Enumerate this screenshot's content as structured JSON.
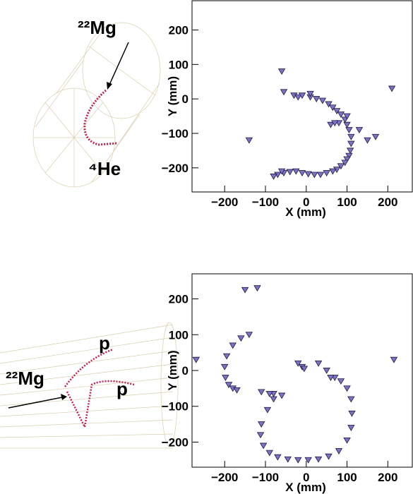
{
  "chart_data": [
    {
      "type": "scatter",
      "xlabel": "X (mm)",
      "ylabel": "Y (mm)",
      "annotations": [
        "²²Mg",
        "⁴He"
      ],
      "xlim": [
        -280,
        260
      ],
      "ylim": [
        -270,
        285
      ],
      "xticks": [
        {
          "value": -200,
          "label": "−200"
        },
        {
          "value": -100,
          "label": "−100"
        },
        0,
        100,
        200
      ],
      "yticks": [
        {
          "value": -200,
          "label": "−200"
        },
        {
          "value": -100,
          "label": "−100"
        },
        0,
        100,
        200
      ],
      "series": [
        {
          "color": "#7b72c4",
          "x": [
            -60,
            -55,
            -30,
            -20,
            -10,
            10,
            25,
            40,
            55,
            65,
            75,
            85,
            95,
            100,
            105,
            110,
            110,
            108,
            105,
            100,
            95,
            85,
            75,
            65,
            50,
            35,
            20,
            5,
            -10,
            -25,
            -40,
            -55,
            -70,
            -80,
            -60,
            210,
            -140,
            150,
            170,
            80,
            60,
            70,
            130,
            100,
            10
          ],
          "values": [
            80,
            20,
            10,
            5,
            10,
            5,
            0,
            -5,
            -15,
            -25,
            -35,
            -45,
            -60,
            -75,
            -90,
            -110,
            -130,
            -150,
            -165,
            -175,
            -185,
            -195,
            -205,
            -210,
            -215,
            -220,
            -220,
            -218,
            -215,
            -210,
            -212,
            -215,
            -220,
            -225,
            -210,
            30,
            -120,
            -120,
            -110,
            -70,
            -75,
            -70,
            -90,
            -50,
            15
          ]
        }
      ]
    },
    {
      "type": "scatter",
      "xlabel": "X (mm)",
      "ylabel": "Y (mm)",
      "annotations": [
        "p",
        "p",
        "²²Mg"
      ],
      "xlim": [
        -280,
        260
      ],
      "ylim": [
        -270,
        270
      ],
      "xticks": [
        {
          "value": -200,
          "label": "−200"
        },
        {
          "value": -100,
          "label": "−100"
        },
        0,
        100,
        200
      ],
      "yticks": [
        {
          "value": -200,
          "label": "−200"
        },
        {
          "value": -100,
          "label": "−100"
        },
        0,
        100,
        200
      ],
      "series": [
        {
          "color": "#7b72c4",
          "x": [
            -140,
            -160,
            -180,
            -195,
            -200,
            -198,
            -190,
            -180,
            -170,
            -80,
            -95,
            -110,
            -112,
            -105,
            -90,
            -70,
            -45,
            -20,
            5,
            30,
            55,
            80,
            100,
            110,
            112,
            110,
            100,
            85,
            70,
            -150,
            -120,
            -270,
            215,
            -10,
            -5,
            -20,
            -60,
            -80,
            -110,
            -90,
            60,
            30,
            50
          ],
          "values": [
            100,
            90,
            70,
            40,
            10,
            -20,
            -40,
            -50,
            -55,
            -80,
            -110,
            -150,
            -180,
            -210,
            -230,
            -242,
            -248,
            -250,
            -250,
            -248,
            -240,
            -225,
            -195,
            -160,
            -120,
            -80,
            -50,
            -30,
            -20,
            225,
            230,
            30,
            30,
            10,
            5,
            20,
            -70,
            -65,
            -60,
            -65,
            -20,
            20,
            0
          ]
        }
      ]
    }
  ]
}
